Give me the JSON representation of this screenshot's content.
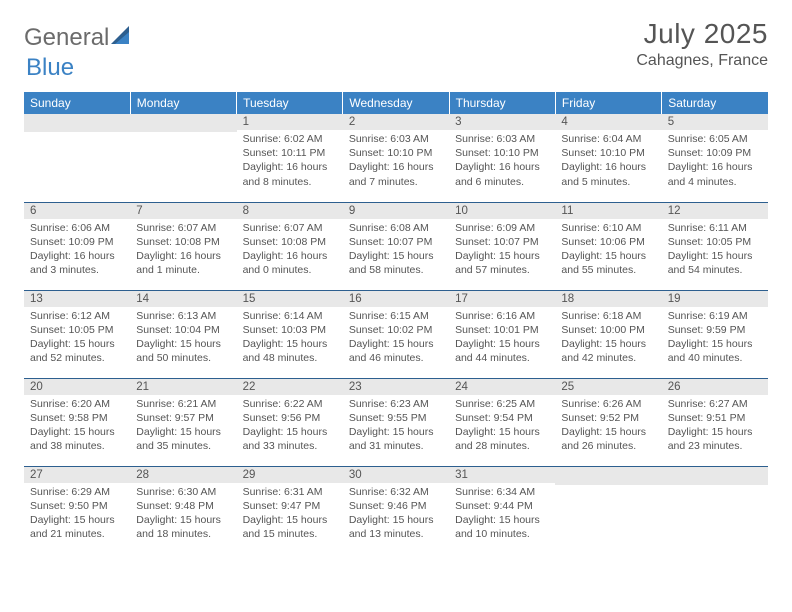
{
  "logo": {
    "text1": "General",
    "text2": "Blue"
  },
  "title": "July 2025",
  "location": "Cahagnes, France",
  "colors": {
    "headerBg": "#3b82c4",
    "headerText": "#ffffff",
    "dayNumBg": "#e8e8e8",
    "rowBorder": "#2d5f8f",
    "bodyText": "#555555"
  },
  "dayHeaders": [
    "Sunday",
    "Monday",
    "Tuesday",
    "Wednesday",
    "Thursday",
    "Friday",
    "Saturday"
  ],
  "weeks": [
    [
      null,
      null,
      {
        "n": "1",
        "sunrise": "Sunrise: 6:02 AM",
        "sunset": "Sunset: 10:11 PM",
        "day1": "Daylight: 16 hours",
        "day2": "and 8 minutes."
      },
      {
        "n": "2",
        "sunrise": "Sunrise: 6:03 AM",
        "sunset": "Sunset: 10:10 PM",
        "day1": "Daylight: 16 hours",
        "day2": "and 7 minutes."
      },
      {
        "n": "3",
        "sunrise": "Sunrise: 6:03 AM",
        "sunset": "Sunset: 10:10 PM",
        "day1": "Daylight: 16 hours",
        "day2": "and 6 minutes."
      },
      {
        "n": "4",
        "sunrise": "Sunrise: 6:04 AM",
        "sunset": "Sunset: 10:10 PM",
        "day1": "Daylight: 16 hours",
        "day2": "and 5 minutes."
      },
      {
        "n": "5",
        "sunrise": "Sunrise: 6:05 AM",
        "sunset": "Sunset: 10:09 PM",
        "day1": "Daylight: 16 hours",
        "day2": "and 4 minutes."
      }
    ],
    [
      {
        "n": "6",
        "sunrise": "Sunrise: 6:06 AM",
        "sunset": "Sunset: 10:09 PM",
        "day1": "Daylight: 16 hours",
        "day2": "and 3 minutes."
      },
      {
        "n": "7",
        "sunrise": "Sunrise: 6:07 AM",
        "sunset": "Sunset: 10:08 PM",
        "day1": "Daylight: 16 hours",
        "day2": "and 1 minute."
      },
      {
        "n": "8",
        "sunrise": "Sunrise: 6:07 AM",
        "sunset": "Sunset: 10:08 PM",
        "day1": "Daylight: 16 hours",
        "day2": "and 0 minutes."
      },
      {
        "n": "9",
        "sunrise": "Sunrise: 6:08 AM",
        "sunset": "Sunset: 10:07 PM",
        "day1": "Daylight: 15 hours",
        "day2": "and 58 minutes."
      },
      {
        "n": "10",
        "sunrise": "Sunrise: 6:09 AM",
        "sunset": "Sunset: 10:07 PM",
        "day1": "Daylight: 15 hours",
        "day2": "and 57 minutes."
      },
      {
        "n": "11",
        "sunrise": "Sunrise: 6:10 AM",
        "sunset": "Sunset: 10:06 PM",
        "day1": "Daylight: 15 hours",
        "day2": "and 55 minutes."
      },
      {
        "n": "12",
        "sunrise": "Sunrise: 6:11 AM",
        "sunset": "Sunset: 10:05 PM",
        "day1": "Daylight: 15 hours",
        "day2": "and 54 minutes."
      }
    ],
    [
      {
        "n": "13",
        "sunrise": "Sunrise: 6:12 AM",
        "sunset": "Sunset: 10:05 PM",
        "day1": "Daylight: 15 hours",
        "day2": "and 52 minutes."
      },
      {
        "n": "14",
        "sunrise": "Sunrise: 6:13 AM",
        "sunset": "Sunset: 10:04 PM",
        "day1": "Daylight: 15 hours",
        "day2": "and 50 minutes."
      },
      {
        "n": "15",
        "sunrise": "Sunrise: 6:14 AM",
        "sunset": "Sunset: 10:03 PM",
        "day1": "Daylight: 15 hours",
        "day2": "and 48 minutes."
      },
      {
        "n": "16",
        "sunrise": "Sunrise: 6:15 AM",
        "sunset": "Sunset: 10:02 PM",
        "day1": "Daylight: 15 hours",
        "day2": "and 46 minutes."
      },
      {
        "n": "17",
        "sunrise": "Sunrise: 6:16 AM",
        "sunset": "Sunset: 10:01 PM",
        "day1": "Daylight: 15 hours",
        "day2": "and 44 minutes."
      },
      {
        "n": "18",
        "sunrise": "Sunrise: 6:18 AM",
        "sunset": "Sunset: 10:00 PM",
        "day1": "Daylight: 15 hours",
        "day2": "and 42 minutes."
      },
      {
        "n": "19",
        "sunrise": "Sunrise: 6:19 AM",
        "sunset": "Sunset: 9:59 PM",
        "day1": "Daylight: 15 hours",
        "day2": "and 40 minutes."
      }
    ],
    [
      {
        "n": "20",
        "sunrise": "Sunrise: 6:20 AM",
        "sunset": "Sunset: 9:58 PM",
        "day1": "Daylight: 15 hours",
        "day2": "and 38 minutes."
      },
      {
        "n": "21",
        "sunrise": "Sunrise: 6:21 AM",
        "sunset": "Sunset: 9:57 PM",
        "day1": "Daylight: 15 hours",
        "day2": "and 35 minutes."
      },
      {
        "n": "22",
        "sunrise": "Sunrise: 6:22 AM",
        "sunset": "Sunset: 9:56 PM",
        "day1": "Daylight: 15 hours",
        "day2": "and 33 minutes."
      },
      {
        "n": "23",
        "sunrise": "Sunrise: 6:23 AM",
        "sunset": "Sunset: 9:55 PM",
        "day1": "Daylight: 15 hours",
        "day2": "and 31 minutes."
      },
      {
        "n": "24",
        "sunrise": "Sunrise: 6:25 AM",
        "sunset": "Sunset: 9:54 PM",
        "day1": "Daylight: 15 hours",
        "day2": "and 28 minutes."
      },
      {
        "n": "25",
        "sunrise": "Sunrise: 6:26 AM",
        "sunset": "Sunset: 9:52 PM",
        "day1": "Daylight: 15 hours",
        "day2": "and 26 minutes."
      },
      {
        "n": "26",
        "sunrise": "Sunrise: 6:27 AM",
        "sunset": "Sunset: 9:51 PM",
        "day1": "Daylight: 15 hours",
        "day2": "and 23 minutes."
      }
    ],
    [
      {
        "n": "27",
        "sunrise": "Sunrise: 6:29 AM",
        "sunset": "Sunset: 9:50 PM",
        "day1": "Daylight: 15 hours",
        "day2": "and 21 minutes."
      },
      {
        "n": "28",
        "sunrise": "Sunrise: 6:30 AM",
        "sunset": "Sunset: 9:48 PM",
        "day1": "Daylight: 15 hours",
        "day2": "and 18 minutes."
      },
      {
        "n": "29",
        "sunrise": "Sunrise: 6:31 AM",
        "sunset": "Sunset: 9:47 PM",
        "day1": "Daylight: 15 hours",
        "day2": "and 15 minutes."
      },
      {
        "n": "30",
        "sunrise": "Sunrise: 6:32 AM",
        "sunset": "Sunset: 9:46 PM",
        "day1": "Daylight: 15 hours",
        "day2": "and 13 minutes."
      },
      {
        "n": "31",
        "sunrise": "Sunrise: 6:34 AM",
        "sunset": "Sunset: 9:44 PM",
        "day1": "Daylight: 15 hours",
        "day2": "and 10 minutes."
      },
      null,
      null
    ]
  ]
}
